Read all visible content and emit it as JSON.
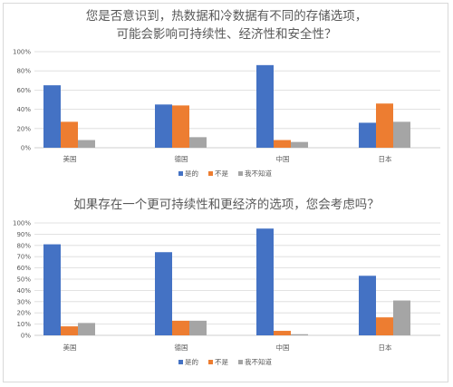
{
  "chart_data": [
    {
      "type": "bar",
      "title": "您是否意识到，热数据和冷数据有不同的存储选项，可能会影响可持续性、经济性和安全性？",
      "title_lines": [
        "您是否意识到，热数据和冷数据有不同的存储选项，",
        "可能会影响可持续性、经济性和安全性？"
      ],
      "categories": [
        "美国",
        "德国",
        "中国",
        "日本"
      ],
      "series": [
        {
          "name": "是的",
          "color": "#4472c4",
          "values": [
            65,
            45,
            86,
            26
          ]
        },
        {
          "name": "不是",
          "color": "#ed7d31",
          "values": [
            27,
            44,
            8,
            46
          ]
        },
        {
          "name": "我不知道",
          "color": "#a5a5a5",
          "values": [
            8,
            11,
            6,
            27
          ]
        }
      ],
      "ylim": [
        0,
        100
      ],
      "yticks": [
        "0%",
        "20%",
        "40%",
        "60%",
        "80%",
        "100%"
      ],
      "grid": true,
      "legend": "bottom"
    },
    {
      "type": "bar",
      "title": "如果存在一个更可持续性和更经济的选项，您会考虑吗？",
      "title_lines": [
        "如果存在一个更可持续性和更经济的选项，您会考虑吗？"
      ],
      "categories": [
        "美国",
        "德国",
        "中国",
        "日本"
      ],
      "series": [
        {
          "name": "是的",
          "color": "#4472c4",
          "values": [
            81,
            74,
            95,
            53
          ]
        },
        {
          "name": "不是",
          "color": "#ed7d31",
          "values": [
            8,
            13,
            4,
            16
          ]
        },
        {
          "name": "我不知道",
          "color": "#a5a5a5",
          "values": [
            11,
            13,
            1,
            31
          ]
        }
      ],
      "ylim": [
        0,
        100
      ],
      "yticks": [
        "0%",
        "10%",
        "20%",
        "30%",
        "40%",
        "50%",
        "60%",
        "70%",
        "80%",
        "90%",
        "100%"
      ],
      "grid": true,
      "legend": "bottom"
    }
  ]
}
